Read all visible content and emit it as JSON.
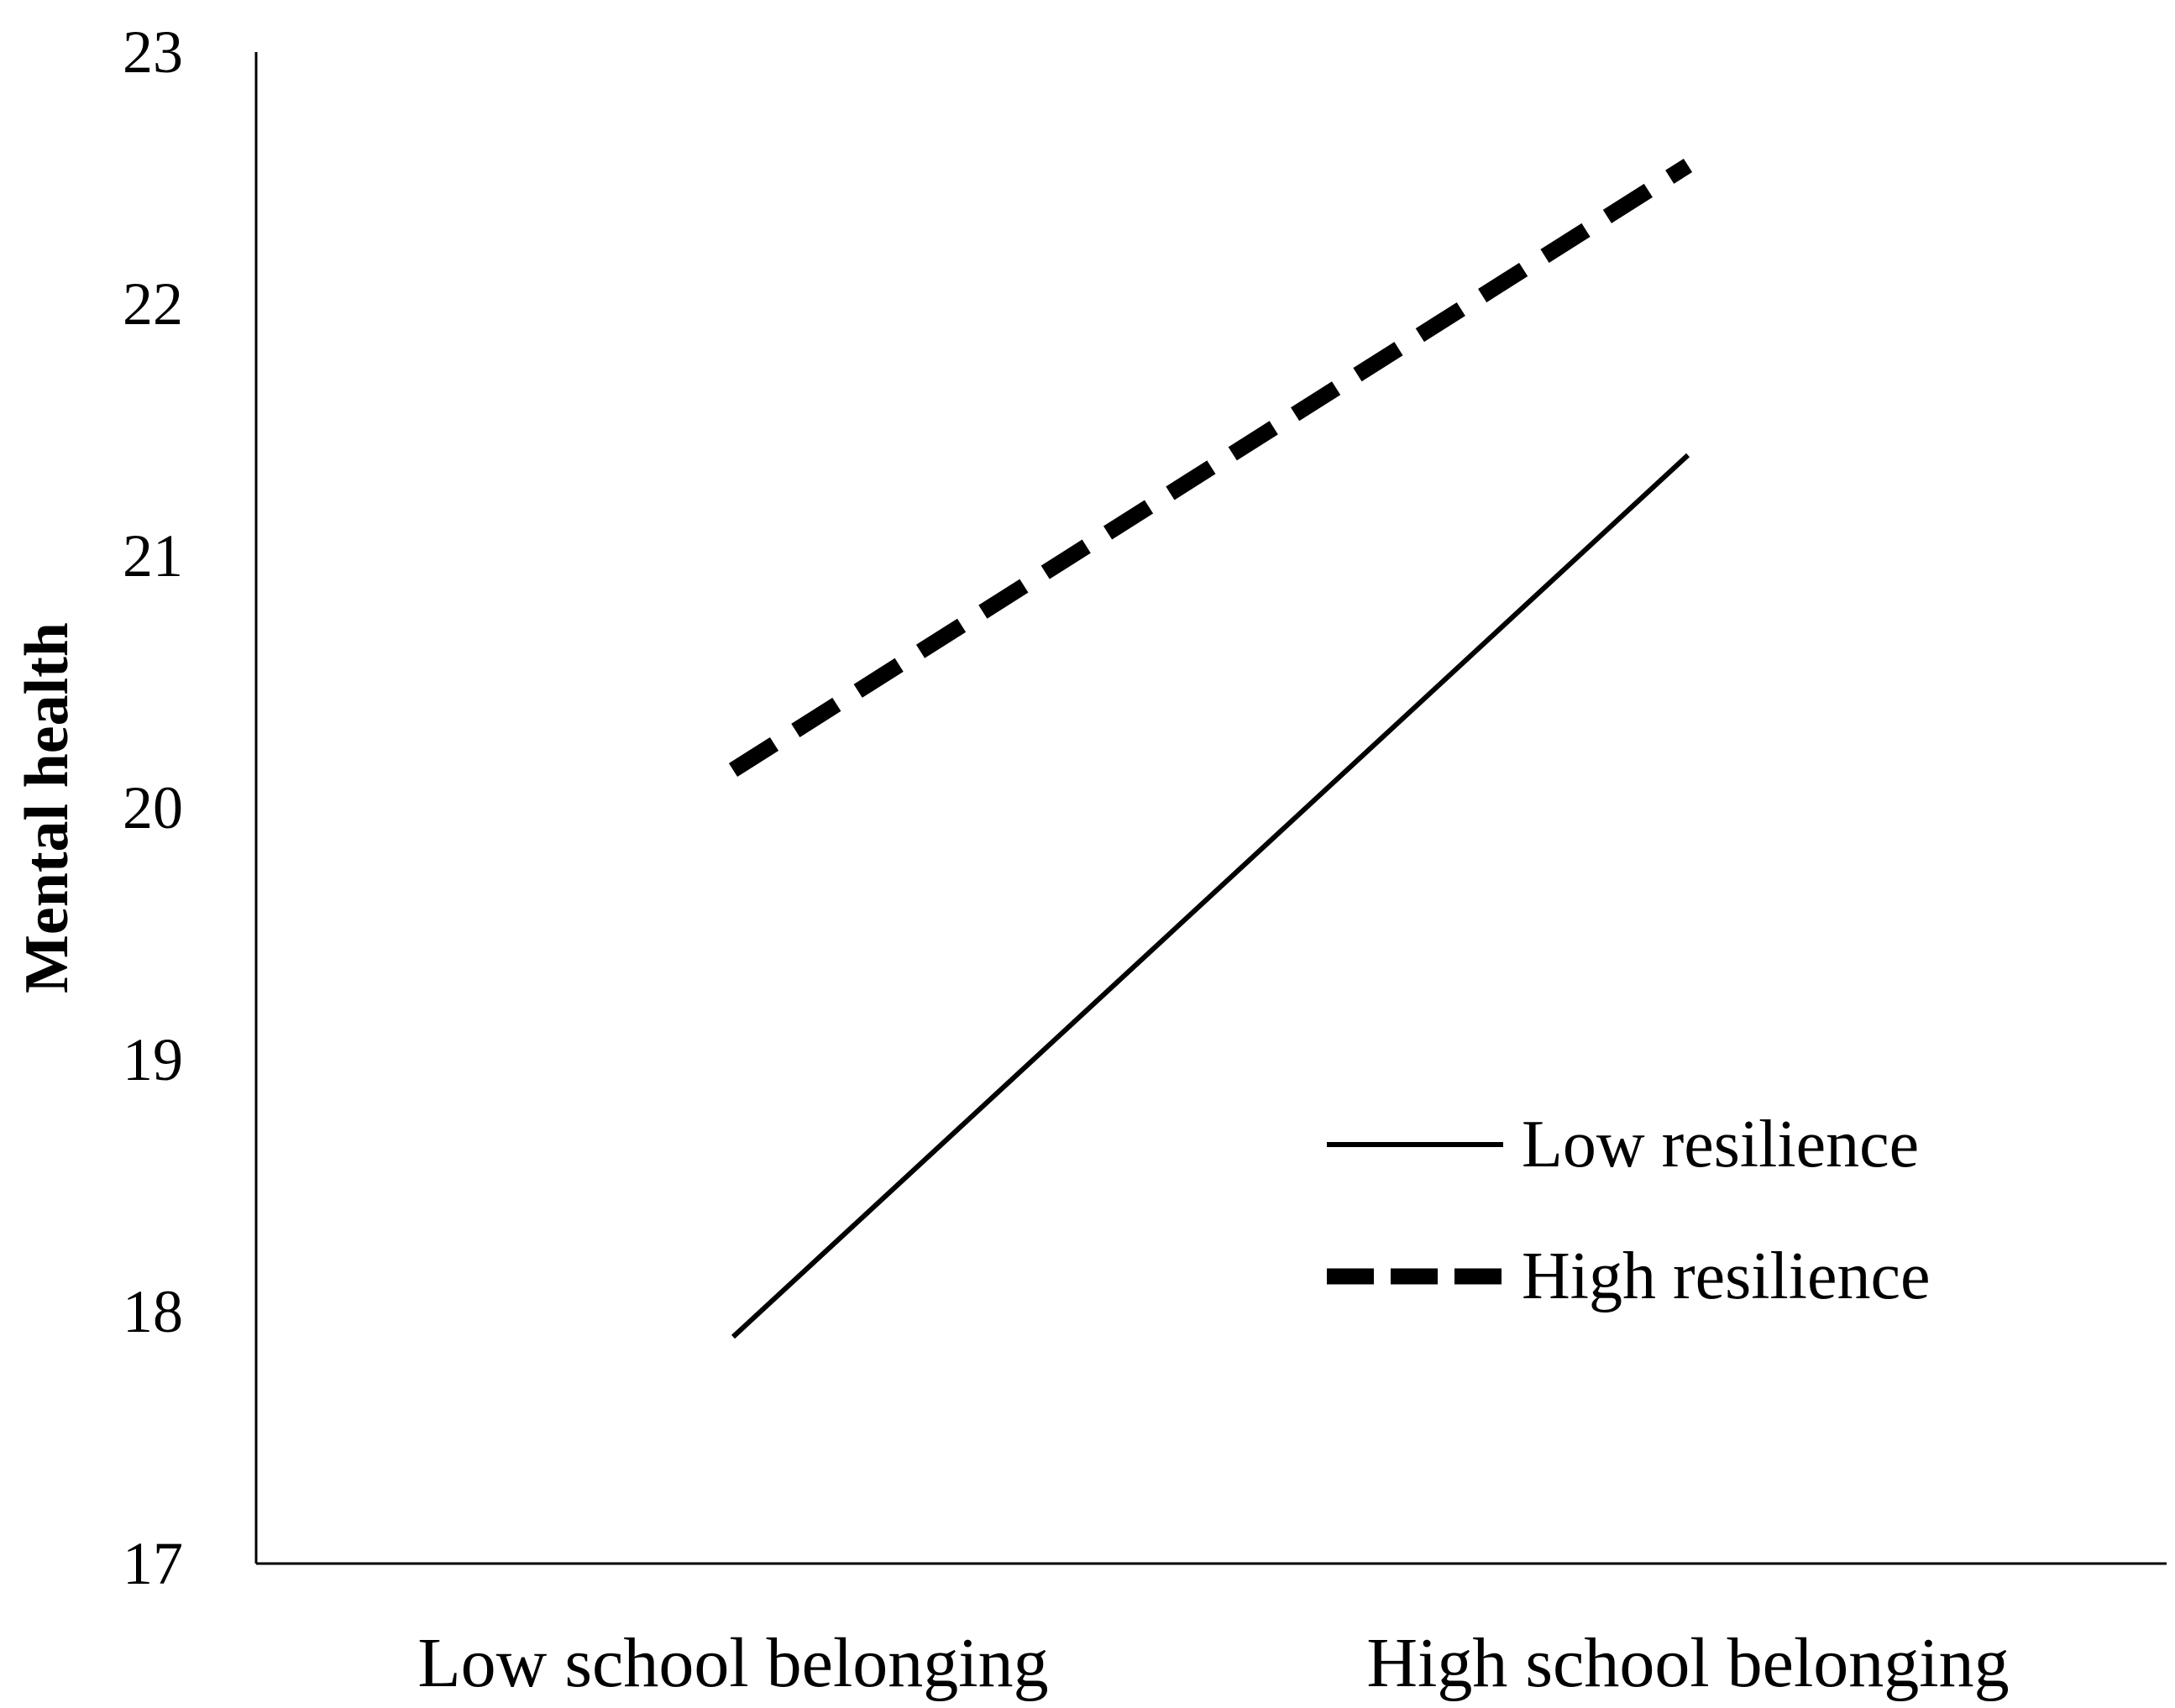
{
  "chart_data": {
    "type": "line",
    "title": "",
    "xlabel": "",
    "ylabel": "Mental health",
    "categories": [
      "Low school belonging",
      "High school belonging"
    ],
    "ylim": [
      17,
      23
    ],
    "yticks": [
      17,
      18,
      19,
      20,
      21,
      22,
      23
    ],
    "grid": false,
    "legend_position": "bottom-right",
    "series": [
      {
        "name": "Low resilience",
        "values": [
          17.9,
          21.4
        ],
        "style": "solid",
        "color": "#000000"
      },
      {
        "name": "High resilience",
        "values": [
          20.15,
          22.55
        ],
        "style": "dashed",
        "color": "#000000"
      }
    ]
  }
}
